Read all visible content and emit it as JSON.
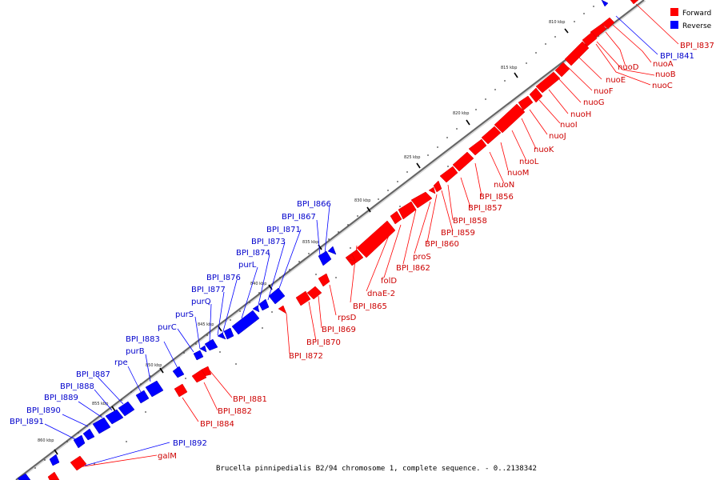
{
  "caption": "Brucella pinnipedialis B2/94 chromosome 1, complete sequence. - 0..2138342",
  "legend": [
    {
      "label": "Forward",
      "color": "#ff0000"
    },
    {
      "label": "Reverse",
      "color": "#0000ff"
    }
  ],
  "ticks": [
    "810 kbp",
    "815 kbp",
    "820 kbp",
    "825 kbp",
    "830 kbp",
    "835 kbp",
    "840 kbp",
    "845 kbp",
    "850 kbp",
    "855 kbp",
    "860 kbp"
  ],
  "labels": {
    "BPI_I837": "BPI_I837",
    "BPI_I841": "BPI_I841",
    "nuoA": "nuoA",
    "nuoD": "nuoD",
    "nuoB": "nuoB",
    "nuoC": "nuoC",
    "nuoE": "nuoE",
    "nuoF": "nuoF",
    "nuoG": "nuoG",
    "nuoH": "nuoH",
    "nuoI": "nuoI",
    "nuoJ": "nuoJ",
    "nuoK": "nuoK",
    "nuoL": "nuoL",
    "nuoM": "nuoM",
    "nuoN": "nuoN",
    "BPI_I856": "BPI_I856",
    "BPI_I857": "BPI_I857",
    "BPI_I858": "BPI_I858",
    "BPI_I859": "BPI_I859",
    "BPI_I860": "BPI_I860",
    "proS": "proS",
    "BPI_I862": "BPI_I862",
    "folD": "folD",
    "dnaE-2": "dnaE-2",
    "BPI_I865": "BPI_I865",
    "BPI_I866": "BPI_I866",
    "BPI_I867": "BPI_I867",
    "rpsD": "rpsD",
    "BPI_I869": "BPI_I869",
    "BPI_I870": "BPI_I870",
    "BPI_I871": "BPI_I871",
    "BPI_I872": "BPI_I872",
    "BPI_I873": "BPI_I873",
    "BPI_I874": "BPI_I874",
    "purL": "purL",
    "BPI_I876": "BPI_I876",
    "BPI_I877": "BPI_I877",
    "purQ": "purQ",
    "purS": "purS",
    "purC": "purC",
    "BPI_I881": "BPI_I881",
    "BPI_I882": "BPI_I882",
    "BPI_I883": "BPI_I883",
    "BPI_I884": "BPI_I884",
    "purB": "purB",
    "rpe": "rpe",
    "BPI_I887": "BPI_I887",
    "BPI_I888": "BPI_I888",
    "BPI_I889": "BPI_I889",
    "BPI_I890": "BPI_I890",
    "BPI_I891": "BPI_I891",
    "BPI_I892": "BPI_I892",
    "galM": "galM"
  }
}
